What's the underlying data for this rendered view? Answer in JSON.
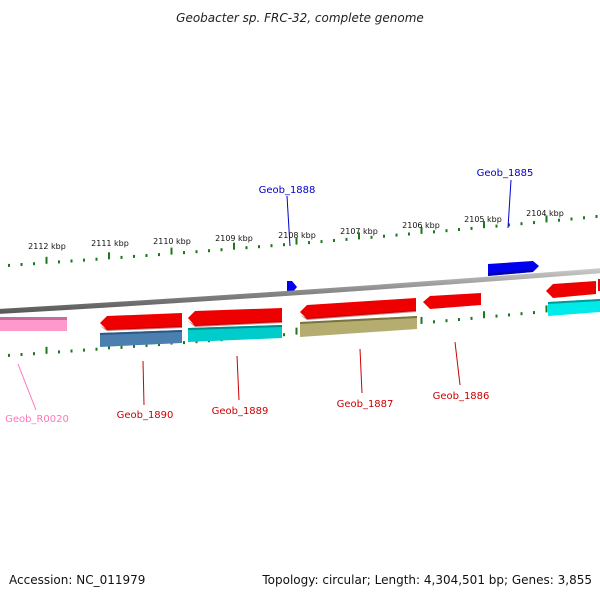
{
  "title": "Geobacter sp. FRC-32, complete genome",
  "footer": {
    "accession": "Accession: NC_011979",
    "summary": "Topology: circular; Length: 4,304,501 bp; Genes: 3,855"
  },
  "kbp_labels": [
    "2112 kbp",
    "2111 kbp",
    "2110 kbp",
    "2109 kbp",
    "2108 kbp",
    "2107 kbp",
    "2106 kbp",
    "2105 kbp",
    "2104 kbp"
  ],
  "colors": {
    "forward_gene": "#0000ee",
    "reverse_gene": "#ee0000",
    "cyan_feature": "#00cccc",
    "steel_feature": "#4a7fb0",
    "olive_feature": "#b5ad70",
    "pink_feature": "#ff99cc",
    "backbone": "#8a8a8a",
    "tick": "#1a7a1a",
    "forward_label": "#0000cc",
    "reverse_label": "#cc0000",
    "rna_label": "#ff77bb"
  },
  "gene_labels": [
    {
      "id": "geob-1888",
      "text": "Geob_1888",
      "strand": "forward"
    },
    {
      "id": "geob-1885",
      "text": "Geob_1885",
      "strand": "forward"
    },
    {
      "id": "geob-r0020",
      "text": "Geob_R0020",
      "strand": "rna"
    },
    {
      "id": "geob-1890",
      "text": "Geob_1890",
      "strand": "reverse"
    },
    {
      "id": "geob-1889",
      "text": "Geob_1889",
      "strand": "reverse"
    },
    {
      "id": "geob-1887",
      "text": "Geob_1887",
      "strand": "reverse"
    },
    {
      "id": "geob-1886",
      "text": "Geob_1886",
      "strand": "reverse"
    }
  ]
}
